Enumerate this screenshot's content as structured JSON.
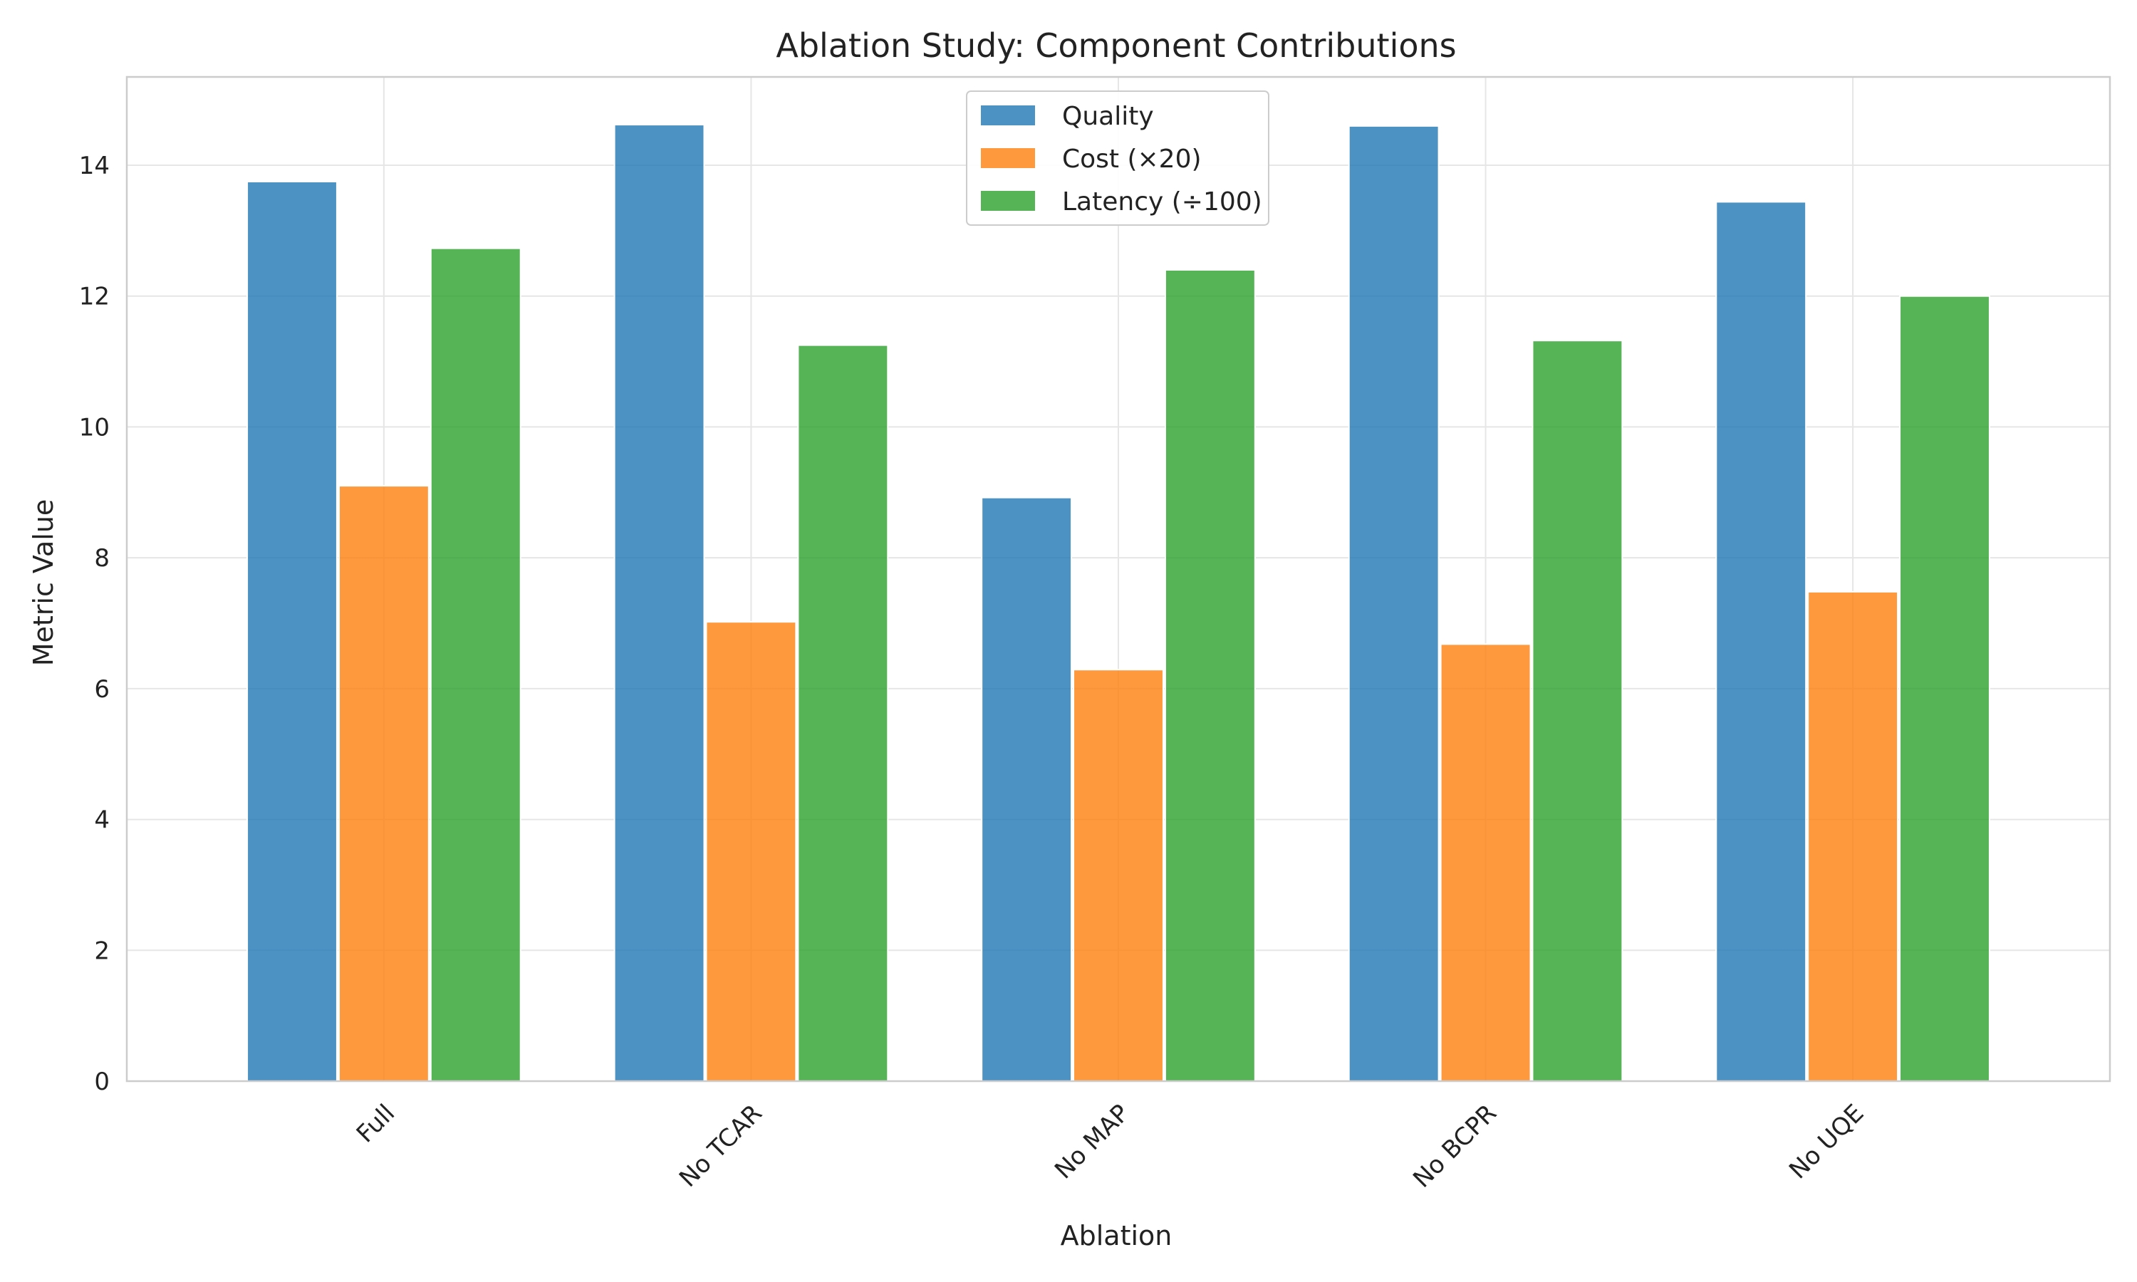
{
  "chart_data": {
    "type": "bar",
    "title": "Ablation Study: Component Contributions",
    "xlabel": "Ablation",
    "ylabel": "Metric Value",
    "categories": [
      "Full",
      "No TCAR",
      "No MAP",
      "No BCPR",
      "No UQE"
    ],
    "series": [
      {
        "name": "Quality",
        "color": "#1f77b4",
        "values": [
          13.75,
          14.62,
          8.92,
          14.6,
          13.44
        ]
      },
      {
        "name": "Cost (×20)",
        "color": "#ff7f0e",
        "values": [
          9.1,
          7.02,
          6.29,
          6.68,
          7.48
        ]
      },
      {
        "name": "Latency (÷100)",
        "color": "#2ca02c",
        "values": [
          12.73,
          11.25,
          12.4,
          11.32,
          12.0
        ]
      }
    ],
    "ylim": [
      0,
      15.35
    ],
    "yticks": [
      0,
      2,
      4,
      6,
      8,
      10,
      12,
      14
    ],
    "grid": true,
    "legend_position": "top-center",
    "bar_opacity": 0.8
  }
}
